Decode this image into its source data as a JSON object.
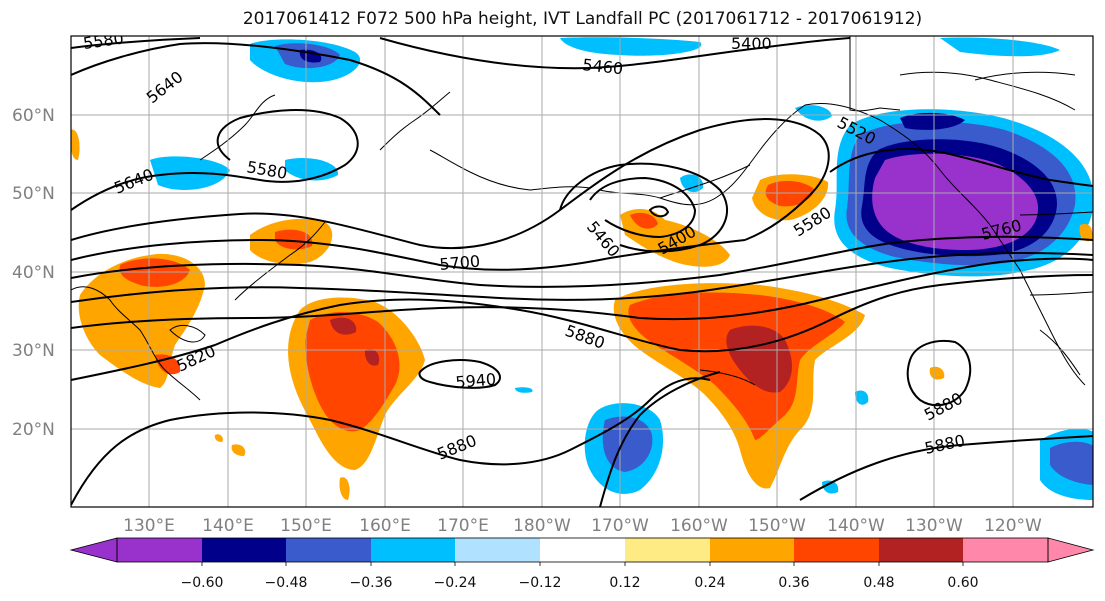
{
  "title": "2017061412 F072 500 hPa height, IVT Landfall PC (2017061712 - 2017061912)",
  "lat_labels": [
    "60°N",
    "50°N",
    "40°N",
    "30°N",
    "20°N"
  ],
  "lon_labels": [
    "130°E",
    "140°E",
    "150°E",
    "160°E",
    "170°E",
    "180°W",
    "170°W",
    "160°W",
    "150°W",
    "140°W",
    "130°W",
    "120°W"
  ],
  "contour_labels": [
    "5580",
    "5400",
    "5640",
    "5460",
    "5520",
    "5580",
    "5640",
    "5460",
    "5400",
    "5580",
    "5760",
    "5700",
    "5880",
    "5820",
    "5940",
    "5880",
    "5880",
    "5880"
  ],
  "colorbar": {
    "ticks": [
      "−0.60",
      "−0.48",
      "−0.36",
      "−0.24",
      "−0.12",
      "0.12",
      "0.24",
      "0.36",
      "0.48",
      "0.60"
    ],
    "colors": [
      "#9932cc",
      "#00008b",
      "#3a5bcb",
      "#00bfff",
      "#b0e2ff",
      "#ffffff",
      "#ffeb84",
      "#ffa500",
      "#ff4500",
      "#b22222",
      "#ff88aa"
    ]
  },
  "colors": {
    "neg_strong": "#9932cc",
    "neg_darkblue": "#00008b",
    "neg_blue": "#3a5bcb",
    "neg_sky": "#00bfff",
    "neg_pale": "#b0e2ff",
    "pos_pale": "#ffeb84",
    "pos_orange": "#ffa500",
    "pos_red": "#ff4500",
    "pos_dark": "#b22222"
  }
}
